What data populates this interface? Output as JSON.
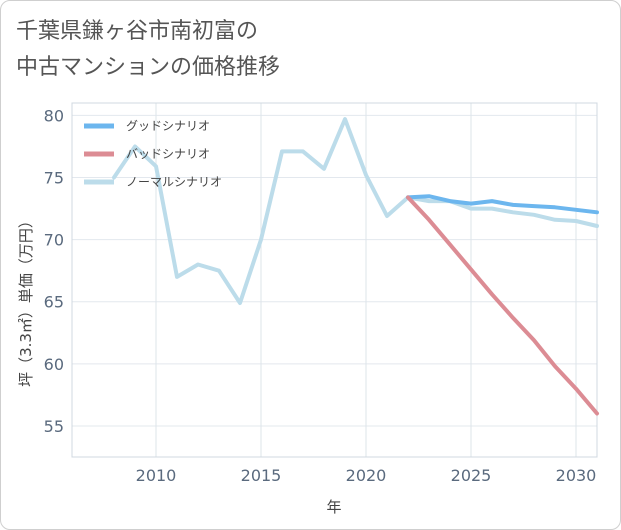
{
  "title_lines": [
    "千葉県鎌ヶ谷市南初富の",
    "中古マンションの価格推移"
  ],
  "chart_data": {
    "type": "line",
    "title": "千葉県鎌ヶ谷市南初富の中古マンションの価格推移",
    "xlabel": "年",
    "ylabel": "坪（3.3㎡）単価（万円）",
    "xlim": [
      2006,
      2031
    ],
    "ylim": [
      52.5,
      81
    ],
    "xticks": [
      2010,
      2015,
      2020,
      2025,
      2030
    ],
    "yticks": [
      55,
      60,
      65,
      70,
      75,
      80
    ],
    "grid": true,
    "legend_position": "top-left",
    "series": [
      {
        "name": "グッドシナリオ",
        "color": "#6cb6ee",
        "x": [
          2022,
          2023,
          2024,
          2025,
          2026,
          2027,
          2028,
          2029,
          2030,
          2031
        ],
        "values": [
          73.4,
          73.5,
          73.1,
          72.9,
          73.1,
          72.8,
          72.7,
          72.6,
          72.4,
          72.2
        ]
      },
      {
        "name": "バッドシナリオ",
        "color": "#dc8c94",
        "x": [
          2022,
          2023,
          2024,
          2025,
          2026,
          2027,
          2028,
          2029,
          2030,
          2031
        ],
        "values": [
          73.4,
          71.6,
          69.6,
          67.6,
          65.6,
          63.7,
          61.9,
          59.8,
          58.0,
          56.0
        ]
      },
      {
        "name": "ノーマルシナリオ",
        "color": "#bcdcea",
        "x": [
          2008,
          2009,
          2010,
          2011,
          2012,
          2013,
          2014,
          2015,
          2016,
          2017,
          2018,
          2019,
          2020,
          2021,
          2022,
          2023,
          2024,
          2025,
          2026,
          2027,
          2028,
          2029,
          2030,
          2031
        ],
        "values": [
          75.0,
          77.5,
          75.9,
          67.0,
          68.0,
          67.5,
          64.9,
          70.0,
          77.1,
          77.1,
          75.7,
          79.7,
          75.2,
          71.9,
          73.4,
          73.1,
          73.1,
          72.5,
          72.5,
          72.2,
          72.0,
          71.6,
          71.5,
          71.1
        ]
      }
    ]
  }
}
